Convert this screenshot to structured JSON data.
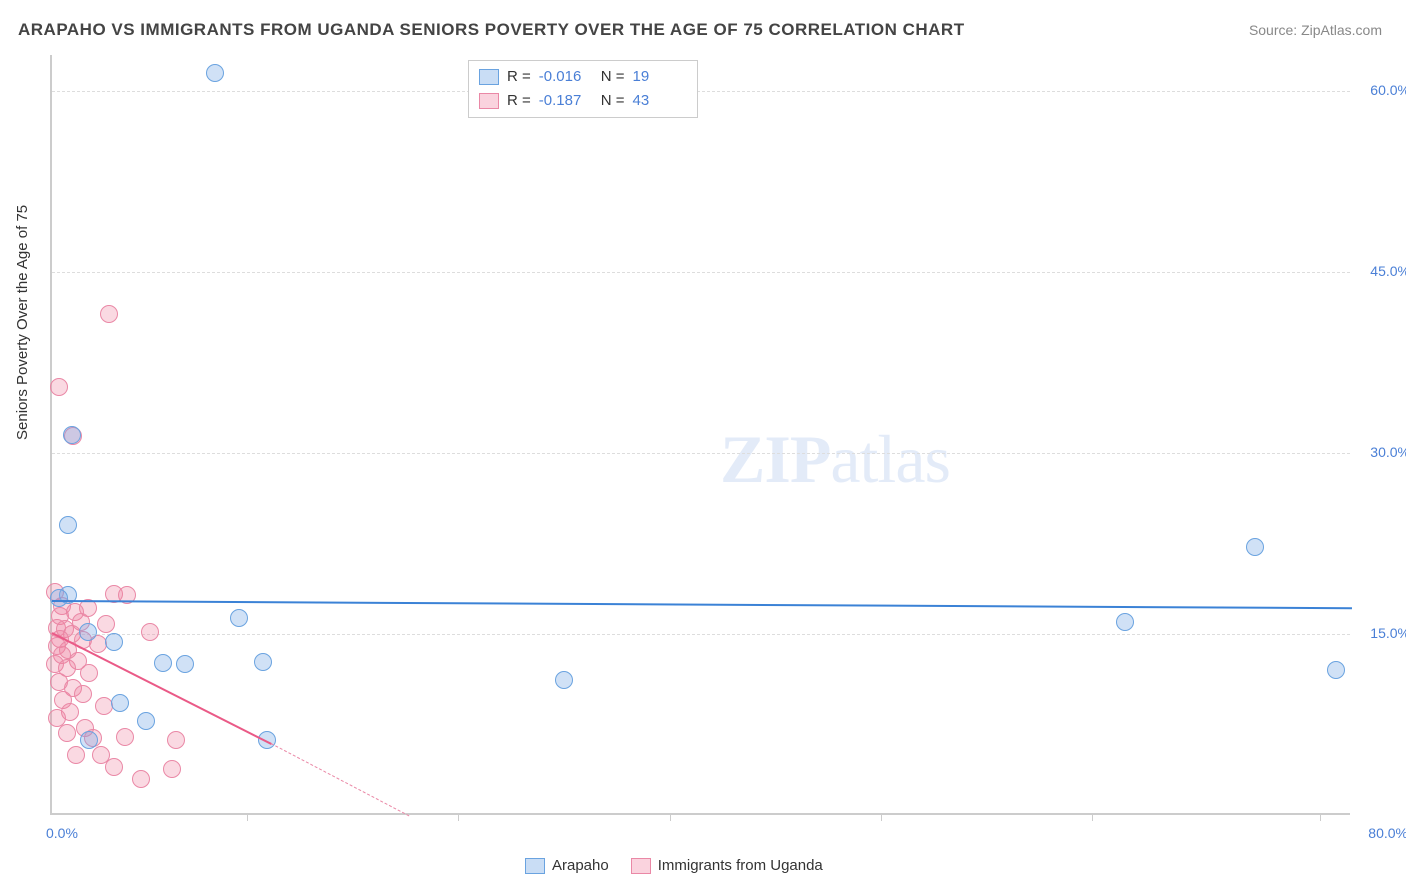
{
  "title": "ARAPAHO VS IMMIGRANTS FROM UGANDA SENIORS POVERTY OVER THE AGE OF 75 CORRELATION CHART",
  "source": "Source: ZipAtlas.com",
  "ylabel": "Seniors Poverty Over the Age of 75",
  "watermark_a": "ZIP",
  "watermark_b": "atlas",
  "chart": {
    "type": "scatter",
    "background_color": "#ffffff",
    "grid_color": "#dddddd",
    "xlim": [
      0,
      80
    ],
    "ylim": [
      0,
      63
    ],
    "yticks": [
      15,
      30,
      45,
      60
    ],
    "ytick_labels": [
      "15.0%",
      "30.0%",
      "45.0%",
      "60.0%"
    ],
    "xtick_labels": {
      "min": "0.0%",
      "max": "80.0%"
    },
    "xaxis_tick_positions": [
      12,
      25,
      38,
      51,
      64,
      78
    ],
    "series": [
      {
        "name": "Arapaho",
        "color_fill": "#9ec5ec",
        "color_stroke": "#6aa3e0",
        "trend_color": "#3b82d6",
        "R": "-0.016",
        "N": "19",
        "trend": {
          "y_at_x0": 17.8,
          "y_at_x80": 17.2
        },
        "points": [
          [
            10,
            61.5
          ],
          [
            1.2,
            31.5
          ],
          [
            1.0,
            24.0
          ],
          [
            74,
            22.2
          ],
          [
            1.0,
            18.2
          ],
          [
            0.4,
            18.0
          ],
          [
            11.5,
            16.3
          ],
          [
            66,
            16.0
          ],
          [
            2.2,
            15.2
          ],
          [
            3.8,
            14.3
          ],
          [
            6.8,
            12.6
          ],
          [
            8.2,
            12.5
          ],
          [
            13,
            12.7
          ],
          [
            79,
            12.0
          ],
          [
            31.5,
            11.2
          ],
          [
            4.2,
            9.3
          ],
          [
            5.8,
            7.8
          ],
          [
            13.2,
            6.2
          ],
          [
            2.3,
            6.2
          ]
        ]
      },
      {
        "name": "Immigrants from Uganda",
        "color_fill": "#f4b3c4",
        "color_stroke": "#ea88a6",
        "trend_color": "#ea5a87",
        "R": "-0.187",
        "N": "43",
        "trend_solid": {
          "y_at_x0": 15.2,
          "end_x": 13.5,
          "end_y": 6.0
        },
        "trend_dashed": {
          "start_x": 13.5,
          "start_y": 6.0,
          "end_x": 22,
          "end_y": 0
        },
        "points": [
          [
            3.5,
            41.5
          ],
          [
            0.4,
            35.5
          ],
          [
            1.3,
            31.4
          ],
          [
            0.2,
            18.5
          ],
          [
            3.8,
            18.3
          ],
          [
            4.6,
            18.2
          ],
          [
            0.6,
            17.3
          ],
          [
            2.2,
            17.2
          ],
          [
            1.4,
            16.8
          ],
          [
            0.5,
            16.5
          ],
          [
            1.8,
            16.0
          ],
          [
            3.3,
            15.8
          ],
          [
            0.3,
            15.5
          ],
          [
            0.8,
            15.4
          ],
          [
            6.0,
            15.2
          ],
          [
            1.2,
            15.0
          ],
          [
            0.5,
            14.6
          ],
          [
            1.9,
            14.5
          ],
          [
            2.8,
            14.2
          ],
          [
            0.3,
            14.0
          ],
          [
            1.0,
            13.7
          ],
          [
            0.6,
            13.3
          ],
          [
            1.6,
            12.8
          ],
          [
            0.2,
            12.5
          ],
          [
            0.9,
            12.2
          ],
          [
            2.3,
            11.8
          ],
          [
            0.4,
            11.0
          ],
          [
            1.3,
            10.5
          ],
          [
            1.9,
            10.0
          ],
          [
            0.7,
            9.5
          ],
          [
            3.2,
            9.0
          ],
          [
            1.1,
            8.5
          ],
          [
            0.3,
            8.0
          ],
          [
            2.0,
            7.2
          ],
          [
            0.9,
            6.8
          ],
          [
            4.5,
            6.5
          ],
          [
            2.5,
            6.4
          ],
          [
            7.6,
            6.2
          ],
          [
            1.5,
            5.0
          ],
          [
            3.0,
            5.0
          ],
          [
            7.4,
            3.8
          ],
          [
            3.8,
            4.0
          ],
          [
            5.5,
            3.0
          ]
        ]
      }
    ]
  },
  "stats_labels": {
    "R": "R =",
    "N": "N ="
  }
}
